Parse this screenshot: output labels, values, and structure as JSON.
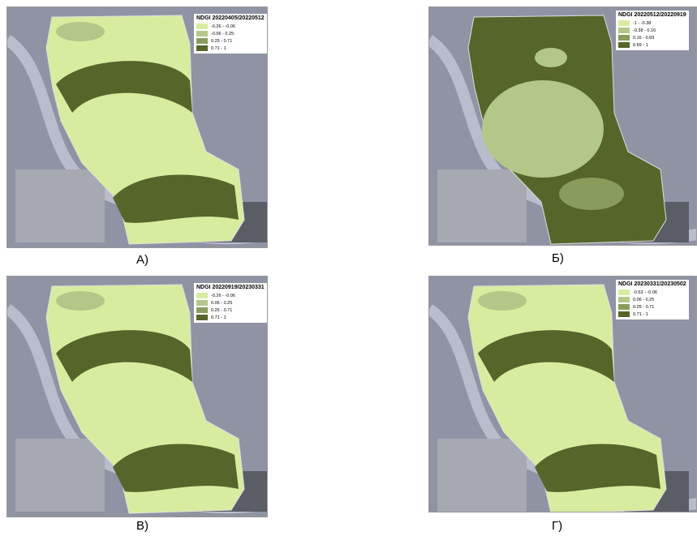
{
  "panels": [
    {
      "caption": "А)",
      "legend_title": "NDGI 20220405/20220512",
      "legend": [
        {
          "label": "-0.26 - -0.06",
          "color": "#d8eca0"
        },
        {
          "label": "-0.06 - 0.25",
          "color": "#b3c788"
        },
        {
          "label": "0.25 - 0.71",
          "color": "#8a9c5c"
        },
        {
          "label": "0.71 - 1",
          "color": "#56652a"
        }
      ]
    },
    {
      "caption": "Б)",
      "legend_title": "NDGI 20220512/20220919",
      "legend": [
        {
          "label": "-1 - -0.38",
          "color": "#d8eca0"
        },
        {
          "label": "-0.38 - 0.16",
          "color": "#b3c788"
        },
        {
          "label": "0.16 - 0.69",
          "color": "#8a9c5c"
        },
        {
          "label": "0.69 - 1",
          "color": "#56652a"
        }
      ]
    },
    {
      "caption": "В)",
      "legend_title": "NDGI 20220919/20230331",
      "legend": [
        {
          "label": "-0.26 - -0.06",
          "color": "#d8eca0"
        },
        {
          "label": "0.06 - 0.25",
          "color": "#b3c788"
        },
        {
          "label": "0.25 - 0.71",
          "color": "#8a9c5c"
        },
        {
          "label": "0.71 - 1",
          "color": "#56652a"
        }
      ]
    },
    {
      "caption": "Г)",
      "legend_title": "NDGI 20230331/20230502",
      "legend": [
        {
          "label": "-0.53 - -0.06",
          "color": "#d8eca0"
        },
        {
          "label": "0.06 - 0.25",
          "color": "#b3c788"
        },
        {
          "label": "0.25 - 0.71",
          "color": "#8a9c5c"
        },
        {
          "label": "0.71 - 1",
          "color": "#56652a"
        }
      ]
    }
  ]
}
